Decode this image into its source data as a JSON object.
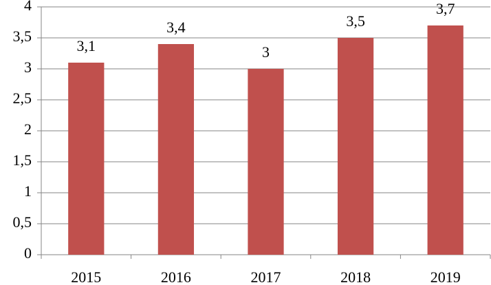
{
  "chart_data": {
    "type": "bar",
    "categories": [
      "2015",
      "2016",
      "2017",
      "2018",
      "2019"
    ],
    "values": [
      3.1,
      3.4,
      3,
      3.5,
      3.7
    ],
    "value_labels": [
      "3,1",
      "3,4",
      "3",
      "3,5",
      "3,7"
    ],
    "color": "#c0504d",
    "ylim": [
      0,
      4
    ],
    "yticks": [
      0,
      {
        "value": 0.5,
        "label": "0,5"
      },
      1,
      {
        "value": 1.5,
        "label": "1,5"
      },
      2,
      {
        "value": 2.5,
        "label": "2,5"
      },
      3,
      {
        "value": 3.5,
        "label": "3,5"
      },
      4
    ],
    "grid": true
  }
}
